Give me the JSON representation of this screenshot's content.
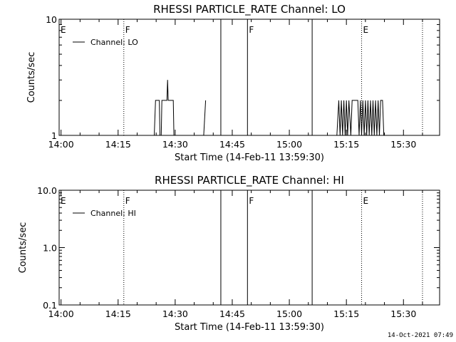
{
  "footer": "14-Oct-2021 07:49",
  "chart_data": [
    {
      "type": "line",
      "title": "RHESSI PARTICLE_RATE Channel: LO",
      "xlabel": "Start Time (14-Feb-11 13:59:30)",
      "ylabel": "Counts/sec",
      "yscale": "log",
      "xlim": [
        "13:59:30",
        "15:39:30"
      ],
      "ylim": [
        1,
        10
      ],
      "x_ticks": [
        "14:00",
        "14:15",
        "14:30",
        "14:45",
        "15:00",
        "15:15",
        "15:30"
      ],
      "y_ticks": [
        {
          "value": 1,
          "label": "1"
        },
        {
          "value": 10,
          "label": "10"
        }
      ],
      "legend": {
        "position": "top-left",
        "entries": [
          "Channel: LO"
        ]
      },
      "markers": [
        {
          "time": "13:59:30",
          "label": "E",
          "style": "none"
        },
        {
          "time": "14:16:30",
          "label": "F",
          "style": "dotted"
        },
        {
          "time": "14:42:00",
          "label": "",
          "style": "solid"
        },
        {
          "time": "14:49:00",
          "label": "F",
          "style": "solid"
        },
        {
          "time": "15:06:00",
          "label": "",
          "style": "solid"
        },
        {
          "time": "15:19:00",
          "label": "E",
          "style": "dotted"
        },
        {
          "time": "15:35:00",
          "label": "",
          "style": "dotted"
        }
      ],
      "series": [
        {
          "name": "Channel: LO",
          "segments": [
            [
              [
                "14:24:30",
                1
              ],
              [
                "14:24:50",
                2
              ],
              [
                "14:25:50",
                2
              ],
              [
                "14:26:00",
                1
              ],
              [
                "14:26:20",
                1
              ],
              [
                "14:26:30",
                2
              ],
              [
                "14:27:50",
                2
              ],
              [
                "14:28:00",
                3
              ],
              [
                "14:28:10",
                2
              ],
              [
                "14:29:30",
                2
              ],
              [
                "14:29:40",
                1
              ]
            ],
            [
              [
                "14:37:30",
                1
              ],
              [
                "14:38:00",
                2
              ]
            ],
            [
              [
                "15:12:30",
                1
              ],
              [
                "15:13:00",
                2
              ],
              [
                "15:13:20",
                1
              ],
              [
                "15:13:40",
                2
              ],
              [
                "15:14:00",
                1
              ],
              [
                "15:14:20",
                2
              ],
              [
                "15:14:40",
                1
              ],
              [
                "15:15:00",
                2
              ],
              [
                "15:15:20",
                1
              ],
              [
                "15:15:40",
                2
              ],
              [
                "15:16:10",
                1
              ],
              [
                "15:16:30",
                2
              ],
              [
                "15:18:00",
                2
              ],
              [
                "15:18:20",
                1
              ],
              [
                "15:18:40",
                2
              ],
              [
                "15:19:00",
                1
              ],
              [
                "15:19:20",
                2
              ],
              [
                "15:19:40",
                1
              ],
              [
                "15:20:00",
                2
              ],
              [
                "15:20:20",
                1
              ],
              [
                "15:20:40",
                2
              ],
              [
                "15:21:00",
                1
              ],
              [
                "15:21:20",
                2
              ],
              [
                "15:21:40",
                1
              ],
              [
                "15:22:00",
                2
              ],
              [
                "15:22:20",
                1
              ],
              [
                "15:22:40",
                2
              ],
              [
                "15:23:00",
                1
              ],
              [
                "15:23:20",
                2
              ],
              [
                "15:23:40",
                1
              ],
              [
                "15:24:00",
                2
              ],
              [
                "15:24:30",
                2
              ],
              [
                "15:24:50",
                1
              ]
            ]
          ]
        }
      ]
    },
    {
      "type": "line",
      "title": "RHESSI PARTICLE_RATE Channel: HI",
      "xlabel": "Start Time (14-Feb-11 13:59:30)",
      "ylabel": "Counts/sec",
      "yscale": "log",
      "xlim": [
        "13:59:30",
        "15:39:30"
      ],
      "ylim": [
        0.1,
        10
      ],
      "x_ticks": [
        "14:00",
        "14:15",
        "14:30",
        "14:45",
        "15:00",
        "15:15",
        "15:30"
      ],
      "y_ticks": [
        {
          "value": 10,
          "label": "10.0"
        },
        {
          "value": 1,
          "label": "1.0"
        },
        {
          "value": 0.1,
          "label": "0.1"
        }
      ],
      "legend": {
        "position": "top-left",
        "entries": [
          "Channel: HI"
        ]
      },
      "markers": [
        {
          "time": "13:59:30",
          "label": "E",
          "style": "none"
        },
        {
          "time": "14:16:30",
          "label": "F",
          "style": "dotted"
        },
        {
          "time": "14:42:00",
          "label": "",
          "style": "solid"
        },
        {
          "time": "14:49:00",
          "label": "F",
          "style": "solid"
        },
        {
          "time": "15:06:00",
          "label": "",
          "style": "solid"
        },
        {
          "time": "15:19:00",
          "label": "E",
          "style": "dotted"
        },
        {
          "time": "15:35:00",
          "label": "",
          "style": "dotted"
        }
      ],
      "series": [
        {
          "name": "Channel: HI",
          "segments": []
        }
      ]
    }
  ]
}
